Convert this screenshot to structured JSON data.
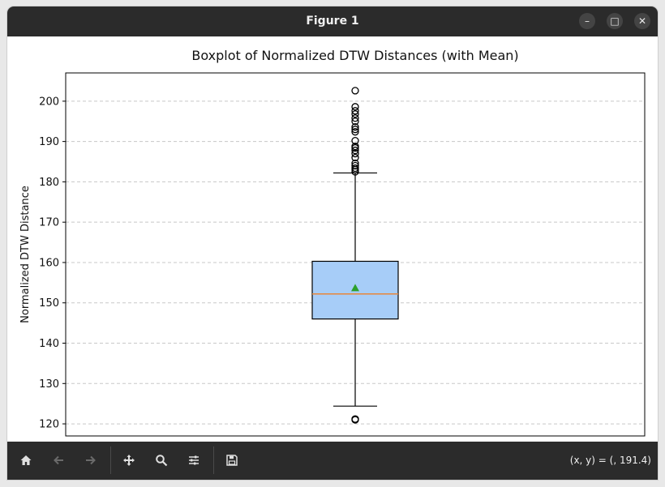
{
  "window": {
    "title": "Figure 1",
    "controls": {
      "minimize": "–",
      "maximize": "□",
      "close": "✕"
    }
  },
  "toolbar": {
    "buttons": [
      "home-icon",
      "back-icon",
      "forward-icon",
      "pan-icon",
      "zoom-icon",
      "configure-icon",
      "save-icon"
    ],
    "coords": "(x, y) = (, 191.4)"
  },
  "chart_data": {
    "type": "boxplot",
    "title": "Boxplot of Normalized DTW Distances (with Mean)",
    "xlabel": "",
    "ylabel": "Normalized DTW Distance",
    "ylim": [
      117,
      207
    ],
    "yticks": [
      120,
      130,
      140,
      150,
      160,
      170,
      180,
      190,
      200
    ],
    "grid": {
      "y": true,
      "style": "dashed"
    },
    "box": {
      "whisker_low": 124.4,
      "q1": 146.0,
      "median": 152.2,
      "mean": 153.7,
      "q3": 160.3,
      "whisker_high": 182.2,
      "outliers": [
        121.2,
        121.0,
        182.5,
        183.0,
        183.4,
        184.0,
        184.6,
        186.0,
        187.0,
        187.8,
        188.4,
        188.8,
        190.2,
        192.4,
        193.0,
        193.6,
        195.0,
        195.8,
        196.8,
        197.6,
        198.6,
        202.6
      ]
    },
    "colors": {
      "box_fill": "#a7cdf8",
      "median": "#e8863a",
      "mean_marker": "#2ca02c",
      "grid": "#c8c8c8"
    }
  }
}
